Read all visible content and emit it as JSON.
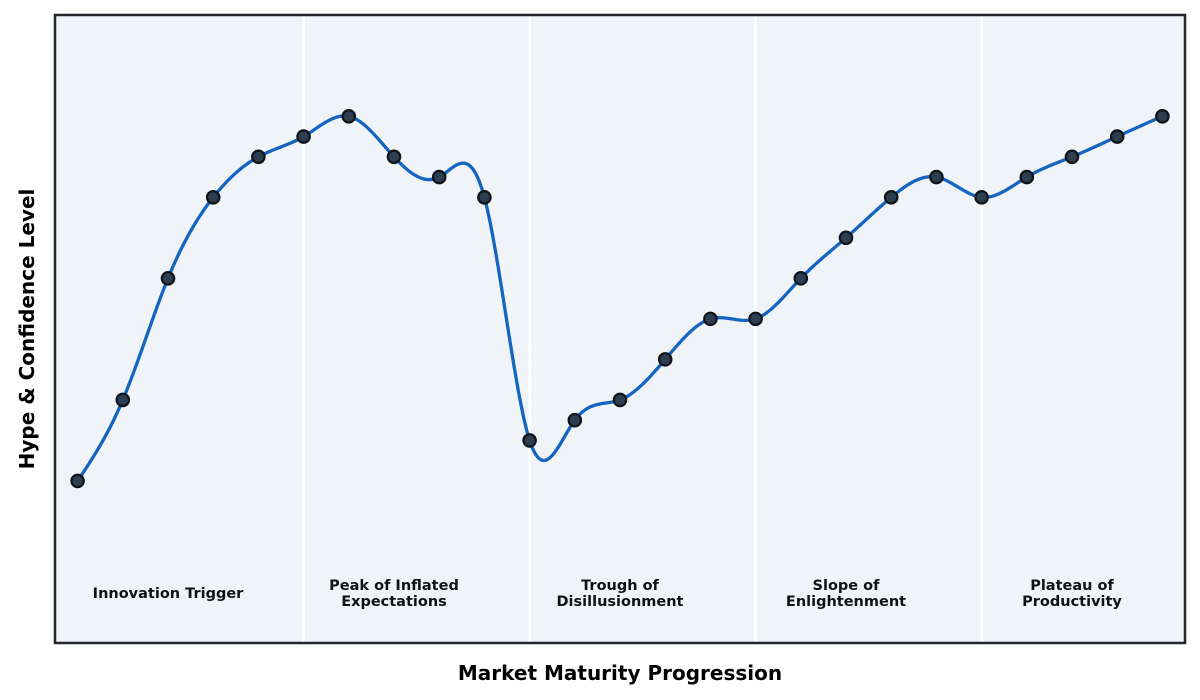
{
  "chart_data": {
    "type": "line",
    "xlabel": "Market Maturity Progression",
    "ylabel": "Hype & Confidence Level",
    "x": [
      0,
      1,
      2,
      3,
      4,
      5,
      6,
      7,
      8,
      9,
      10,
      11,
      12,
      13,
      14,
      15,
      16,
      17,
      18,
      19,
      20,
      21,
      22,
      23,
      24
    ],
    "values": [
      18,
      34,
      58,
      74,
      82,
      86,
      90,
      82,
      78,
      74,
      26,
      30,
      34,
      42,
      50,
      50,
      58,
      66,
      74,
      78,
      74,
      78,
      82,
      86,
      90
    ],
    "xlim": [
      -0.5,
      24.5
    ],
    "ylim": [
      -14,
      110
    ],
    "grid": false,
    "legend": "none",
    "ticks": "none",
    "curve_style": "smooth-cubic-spline",
    "marker_style": "filled-circle",
    "phase_separators_x": [
      5,
      10,
      15,
      20
    ],
    "phases": [
      {
        "label": "Innovation Trigger",
        "label_x": 2
      },
      {
        "label": "Peak of Inflated\nExpectations",
        "label_x": 7
      },
      {
        "label": "Trough of\nDisillusionment",
        "label_x": 12
      },
      {
        "label": "Slope of\nEnlightenment",
        "label_x": 17
      },
      {
        "label": "Plateau of\nProductivity",
        "label_x": 22
      }
    ],
    "colors": {
      "line": "#1565c0",
      "marker_fill": "#2c3e50",
      "marker_edge": "#0f1419",
      "plot_bg": "#f0f4f8",
      "figure_bg": "#ffffff",
      "separator": "#ffffff",
      "spine": "#23262a",
      "text": "#111111"
    }
  }
}
